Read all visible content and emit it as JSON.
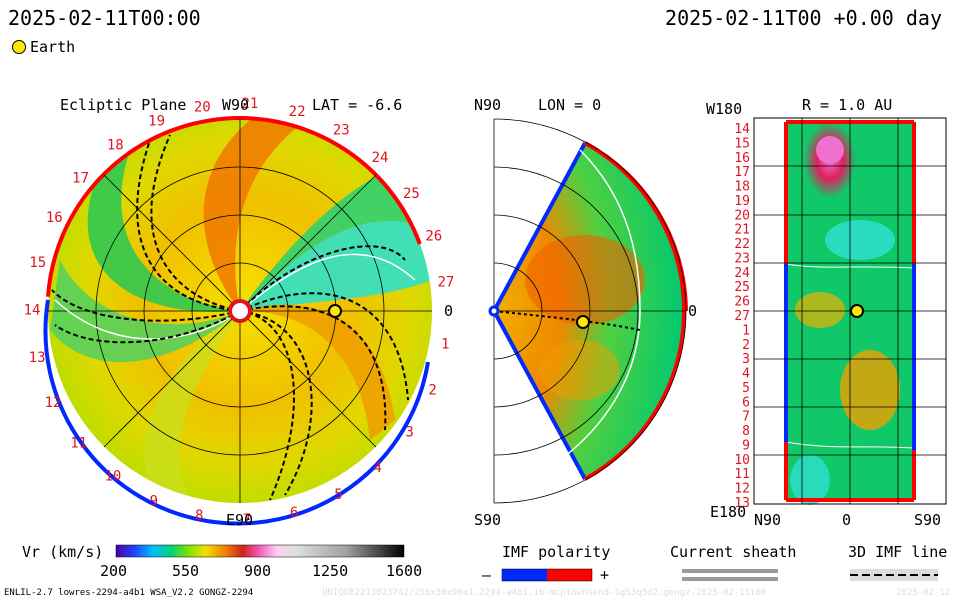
{
  "header": {
    "datetime_left": "2025-02-11T00:00",
    "datetime_right": "2025-02-11T00 +0.00 day",
    "earth_label": "Earth"
  },
  "panels": {
    "ecliptic": {
      "title": "Ecliptic Plane",
      "top_label": "W90",
      "lat_label": "LAT = -6.6",
      "bottom_label": "E90",
      "right_label": "0",
      "cr_ticks": [
        "1",
        "2",
        "3",
        "4",
        "5",
        "6",
        "7",
        "8",
        "9",
        "10",
        "11",
        "12",
        "13",
        "14",
        "15",
        "16",
        "17",
        "18",
        "19",
        "20",
        "21",
        "22",
        "23",
        "24",
        "25",
        "26",
        "27"
      ]
    },
    "meridional": {
      "top_label": "N90",
      "lon_label": "LON = 0",
      "bottom_label": "S90",
      "right_label": "0"
    },
    "map": {
      "top_left_label": "W180",
      "r_label": "R = 1.0 AU",
      "bottom_left_label": "E180",
      "x_labels": [
        "N90",
        "0",
        "S90"
      ],
      "y_ticks": [
        "14",
        "15",
        "16",
        "17",
        "18",
        "19",
        "20",
        "21",
        "22",
        "23",
        "24",
        "25",
        "26",
        "27",
        "1",
        "2",
        "3",
        "4",
        "5",
        "6",
        "7",
        "8",
        "9",
        "10",
        "11",
        "12",
        "13"
      ]
    }
  },
  "legend": {
    "vr_label": "Vr (km/s)",
    "vr_ticks": [
      "200",
      "550",
      "900",
      "1250",
      "1600"
    ],
    "imf_title": "IMF polarity",
    "imf_minus": "–",
    "imf_plus": "+",
    "sheath_title": "Current sheath",
    "imf3d_title": "3D IMF line"
  },
  "footer": {
    "model_info": "ENLIL-2.7 lowres-2294-a4b1 WSA_V2.2 GONGZ-2294",
    "run_id": "UNIQUE2213023742/256x30x90x1.2294-a4b1.16-mcptownsend-1g53q5d2.gongz-2025-02-11t00",
    "right_info": "2025-02-12"
  },
  "chart_data": {
    "type": "heatmap",
    "quantity": "Vr (km/s)",
    "colorbar_range": [
      200,
      1600
    ],
    "colorbar_ticks": [
      200,
      550,
      900,
      1250,
      1600
    ],
    "earth_position": {
      "lat_deg": -6.6,
      "lon_deg": 0,
      "r_au": 1.0
    },
    "colors": {
      "slow_wind": "#00c878",
      "medium_wind": "#f0d000",
      "fast_wind": "#f07800",
      "very_fast_wind": "#e83070",
      "imf_negative": "#0028ff",
      "imf_positive": "#ff0000"
    }
  }
}
